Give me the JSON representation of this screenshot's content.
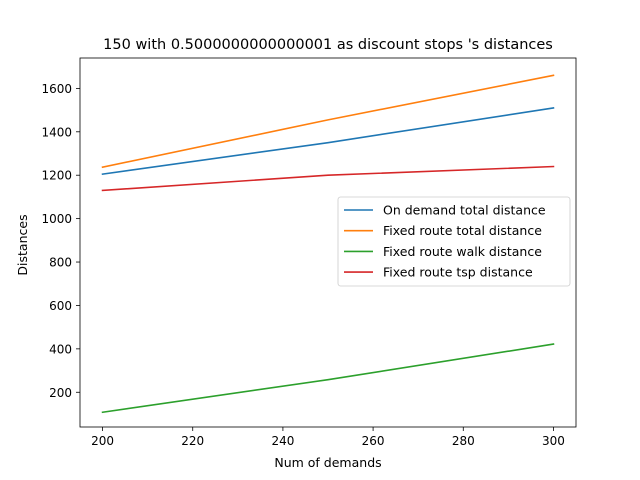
{
  "chart_data": {
    "type": "line",
    "title": "150 with 0.5000000000000001 as discount stops 's distances",
    "xlabel": "Num of demands",
    "ylabel": "Distances",
    "x": [
      200,
      250,
      300
    ],
    "xlim": [
      195,
      305
    ],
    "ylim": [
      40,
      1740
    ],
    "xticks": [
      "200",
      "220",
      "240",
      "260",
      "280",
      "300"
    ],
    "yticks": [
      "200",
      "400",
      "600",
      "800",
      "1000",
      "1200",
      "1400",
      "1600"
    ],
    "grid": false,
    "legend_position": "center-right",
    "series": [
      {
        "name": "On demand total distance",
        "color": "#1f77b4",
        "values": [
          1205,
          1350,
          1510
        ]
      },
      {
        "name": "Fixed route total distance",
        "color": "#ff7f0e",
        "values": [
          1237,
          1455,
          1660
        ]
      },
      {
        "name": "Fixed route walk distance",
        "color": "#2ca02c",
        "values": [
          108,
          258,
          422
        ]
      },
      {
        "name": "Fixed route tsp distance",
        "color": "#d62728",
        "values": [
          1130,
          1200,
          1240
        ]
      }
    ]
  }
}
